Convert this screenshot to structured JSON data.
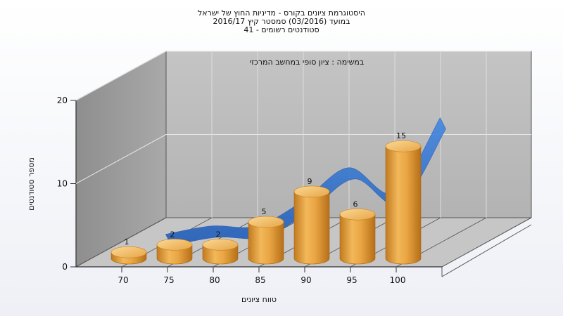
{
  "title_lines": [
    "היסטוגרמת ציונים בקורס - מדיניות החוץ של ישראל",
    "במועד  (03/2016)  סמסטר קיץ  2016/17",
    "סטודנטים רשומים - 41"
  ],
  "subtitle": "במשימה : ציון סופי במחשב המרכזי",
  "chart_data": {
    "type": "bar",
    "categories": [
      "70",
      "75",
      "80",
      "85",
      "90",
      "95",
      "100"
    ],
    "values": [
      1,
      2,
      2,
      5,
      9,
      6,
      15
    ],
    "data_labels": [
      "1",
      "2",
      "2",
      "5",
      "9",
      "6",
      "15"
    ],
    "xlabel": "טווח ציונים",
    "ylabel": "מספר סטודנטים",
    "ylim": [
      0,
      20
    ],
    "yticks": [
      "0",
      "10",
      "20"
    ],
    "grid": true,
    "legend": "none",
    "trend_line": true,
    "colors": {
      "bar": "#e8a441",
      "bar_dark": "#b8731c",
      "bar_light": "#f7cf85",
      "trend": "#3a7bd5",
      "back_wall": "#b9b9b9",
      "side_wall": "#9c9c9c",
      "floor": "#c2c2c2"
    }
  }
}
